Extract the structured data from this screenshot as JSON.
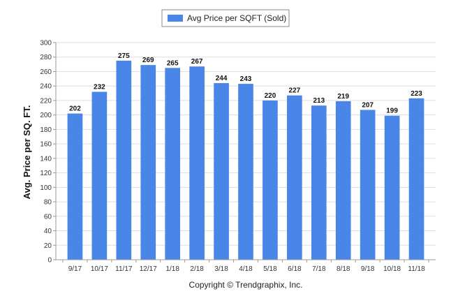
{
  "chart_data": {
    "type": "bar",
    "ylabel": "Avg. Price per SQ. FT.",
    "xlabel": "",
    "ylim": [
      0,
      300
    ],
    "ytick_step": 20,
    "grid": true,
    "legend_position": "top-center",
    "categories": [
      "9/17",
      "10/17",
      "11/17",
      "12/17",
      "1/18",
      "2/18",
      "3/18",
      "4/18",
      "5/18",
      "6/18",
      "7/18",
      "8/18",
      "9/18",
      "10/18",
      "11/18"
    ],
    "series": [
      {
        "name": "Avg Price per SQFT (Sold)",
        "color": "#4a86e8",
        "values": [
          202,
          232,
          275,
          269,
          265,
          267,
          244,
          243,
          220,
          227,
          213,
          219,
          207,
          199,
          223
        ]
      }
    ]
  },
  "footer": {
    "copyright": "Copyright © Trendgraphix, Inc."
  }
}
